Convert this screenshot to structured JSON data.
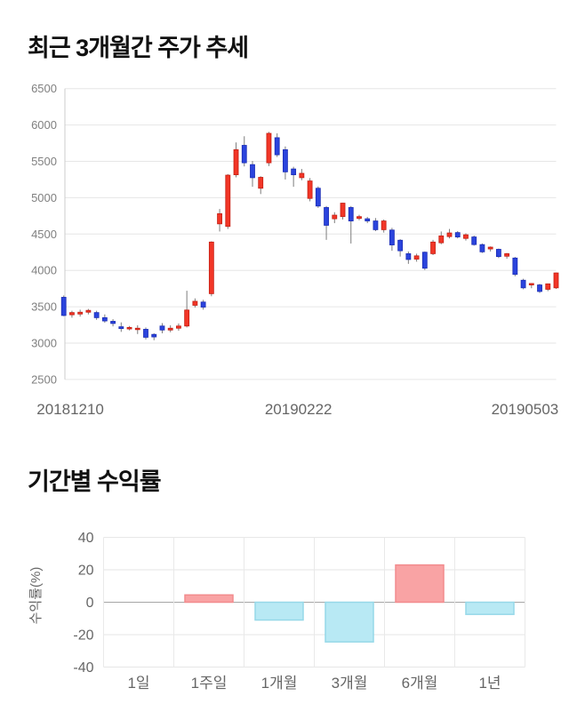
{
  "chart_data": [
    {
      "type": "candlestick",
      "title": "최근 3개월간 주가 추세",
      "x_tick_labels": [
        "20181210",
        "20190222",
        "20190503"
      ],
      "y_tick_labels": [
        "6500",
        "6000",
        "5500",
        "5000",
        "4500",
        "4000",
        "3500",
        "3000",
        "2500"
      ],
      "ylim": [
        2500,
        6500
      ],
      "y_tick_step": 500,
      "up_color": "#f23627",
      "down_color": "#2b44dd",
      "wick_color": "#7d7d7d",
      "candles_ohlc": [
        [
          3630,
          3655,
          3370,
          3380
        ],
        [
          3390,
          3445,
          3350,
          3420
        ],
        [
          3400,
          3460,
          3365,
          3425
        ],
        [
          3425,
          3470,
          3395,
          3450
        ],
        [
          3420,
          3445,
          3320,
          3350
        ],
        [
          3350,
          3395,
          3280,
          3305
        ],
        [
          3300,
          3330,
          3230,
          3270
        ],
        [
          3225,
          3285,
          3155,
          3200
        ],
        [
          3195,
          3235,
          3175,
          3215
        ],
        [
          3200,
          3245,
          3125,
          3205
        ],
        [
          3190,
          3215,
          3050,
          3080
        ],
        [
          3120,
          3135,
          3040,
          3085
        ],
        [
          3235,
          3275,
          3135,
          3180
        ],
        [
          3180,
          3245,
          3150,
          3205
        ],
        [
          3205,
          3270,
          3170,
          3235
        ],
        [
          3235,
          3720,
          3215,
          3455
        ],
        [
          3520,
          3615,
          3490,
          3575
        ],
        [
          3565,
          3595,
          3460,
          3495
        ],
        [
          3680,
          4400,
          3645,
          4390
        ],
        [
          4640,
          4845,
          4535,
          4780
        ],
        [
          4605,
          5325,
          4570,
          5310
        ],
        [
          5315,
          5760,
          5280,
          5660
        ],
        [
          5720,
          5845,
          5430,
          5480
        ],
        [
          5455,
          5505,
          5150,
          5275
        ],
        [
          5130,
          5295,
          5050,
          5280
        ],
        [
          5480,
          5905,
          5435,
          5885
        ],
        [
          5825,
          5885,
          5560,
          5590
        ],
        [
          5660,
          5705,
          5250,
          5355
        ],
        [
          5395,
          5425,
          5150,
          5315
        ],
        [
          5275,
          5395,
          5240,
          5335
        ],
        [
          4990,
          5270,
          4950,
          5230
        ],
        [
          5130,
          5155,
          4860,
          4885
        ],
        [
          4865,
          4885,
          4420,
          4620
        ],
        [
          4710,
          4800,
          4650,
          4760
        ],
        [
          4740,
          4930,
          4700,
          4925
        ],
        [
          4865,
          4885,
          4370,
          4680
        ],
        [
          4715,
          4765,
          4690,
          4740
        ],
        [
          4710,
          4735,
          4650,
          4680
        ],
        [
          4680,
          4720,
          4540,
          4560
        ],
        [
          4560,
          4700,
          4520,
          4680
        ],
        [
          4555,
          4585,
          4270,
          4350
        ],
        [
          4415,
          4430,
          4190,
          4270
        ],
        [
          4230,
          4260,
          4090,
          4150
        ],
        [
          4155,
          4230,
          4120,
          4200
        ],
        [
          4250,
          4260,
          4005,
          4030
        ],
        [
          4230,
          4420,
          4210,
          4390
        ],
        [
          4380,
          4535,
          4360,
          4475
        ],
        [
          4465,
          4570,
          4440,
          4515
        ],
        [
          4520,
          4540,
          4440,
          4460
        ],
        [
          4440,
          4510,
          4410,
          4490
        ],
        [
          4460,
          4480,
          4340,
          4355
        ],
        [
          4355,
          4370,
          4240,
          4255
        ],
        [
          4295,
          4330,
          4260,
          4320
        ],
        [
          4290,
          4300,
          4170,
          4190
        ],
        [
          4195,
          4240,
          4160,
          4230
        ],
        [
          4170,
          4185,
          3920,
          3945
        ],
        [
          3865,
          3885,
          3740,
          3760
        ],
        [
          3800,
          3825,
          3755,
          3820
        ],
        [
          3800,
          3815,
          3690,
          3710
        ],
        [
          3740,
          3820,
          3715,
          3815
        ],
        [
          3760,
          3970,
          3745,
          3965
        ]
      ]
    },
    {
      "type": "bar",
      "title": "기간별 수익률",
      "categories": [
        "1일",
        "1주일",
        "1개월",
        "3개월",
        "6개월",
        "1년"
      ],
      "values": [
        0,
        4.5,
        -11,
        -24.5,
        23,
        -7.5
      ],
      "ylabel": "수익률(%)",
      "ylim": [
        -40,
        40
      ],
      "y_tick_labels": [
        "40",
        "20",
        "0",
        "-20",
        "-40"
      ],
      "positive_color": "#f9a3a4",
      "positive_border": "#f28b8d",
      "negative_color": "#b8e9f4",
      "negative_border": "#96d8e8"
    }
  ]
}
